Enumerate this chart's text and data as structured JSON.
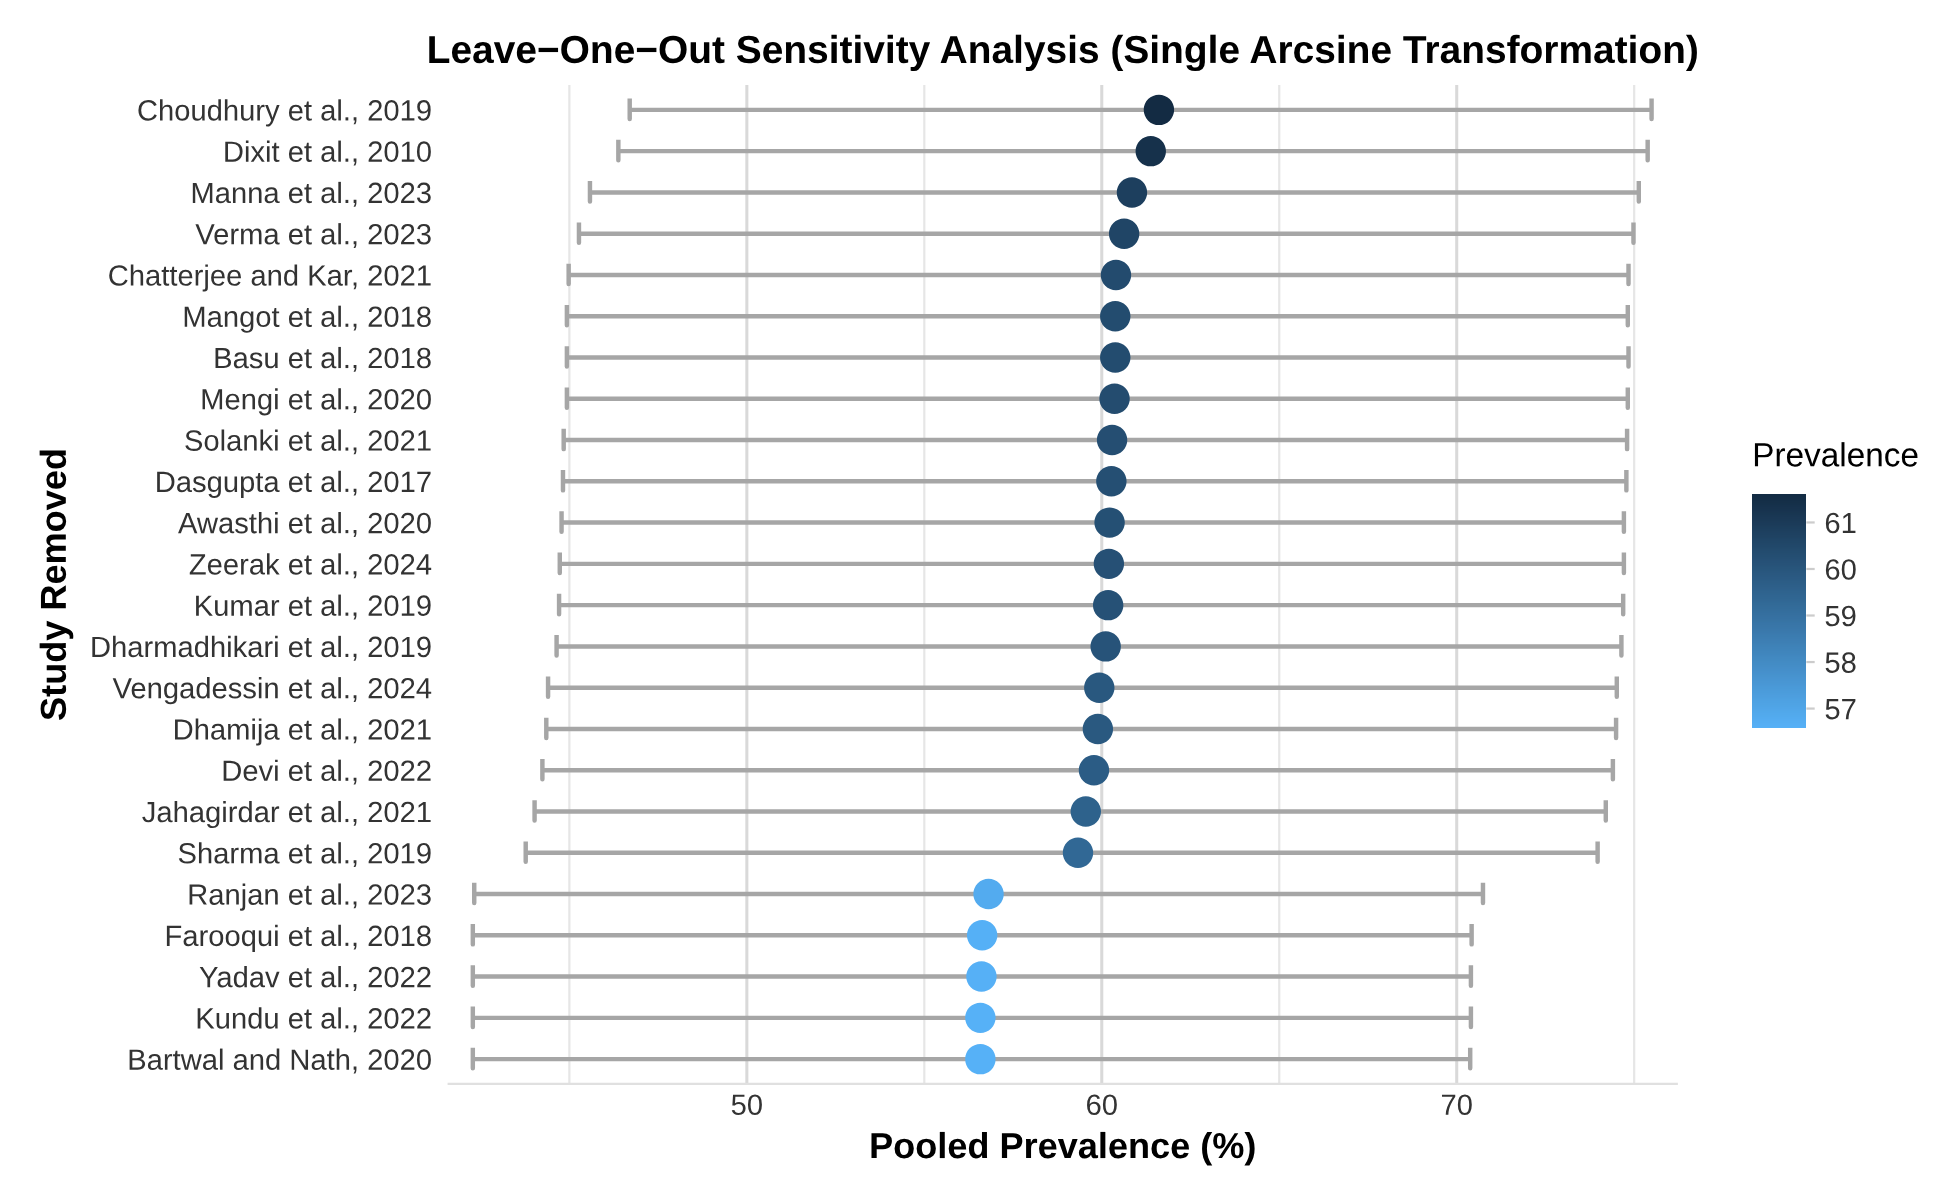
{
  "chart_data": {
    "type": "scatter",
    "orientation": "horizontal",
    "title": "Leave−One−Out Sensitivity Analysis (Single Arcsine Transformation)",
    "xlabel": "Pooled Prevalence (%)",
    "ylabel": "Study Removed",
    "clabel": "Prevalence",
    "categories": [
      "Choudhury et al., 2019",
      "Dixit et al., 2010",
      "Manna et al., 2023",
      "Verma et al., 2023",
      "Chatterjee and Kar, 2021",
      "Mangot et al., 2018",
      "Basu et al., 2018",
      "Mengi et al., 2020",
      "Solanki et al., 2021",
      "Dasgupta et al., 2017",
      "Awasthi et al., 2020",
      "Zeerak et al., 2024",
      "Kumar et al., 2019",
      "Dharmadhikari et al., 2019",
      "Vengadessin et al., 2024",
      "Dhamija et al., 2021",
      "Devi et al., 2022",
      "Jahagirdar et al., 2021",
      "Sharma et al., 2019",
      "Ranjan et al., 2023",
      "Farooqui et al., 2018",
      "Yadav et al., 2022",
      "Kundu et al., 2022",
      "Bartwal and Nath, 2020"
    ],
    "values": [
      61.61,
      61.38,
      60.85,
      60.63,
      60.4,
      60.38,
      60.38,
      60.36,
      60.29,
      60.27,
      60.22,
      60.2,
      60.18,
      60.11,
      59.93,
      59.89,
      59.78,
      59.55,
      59.33,
      56.81,
      56.63,
      56.61,
      56.58,
      56.58
    ],
    "cvalues": [
      61.61,
      61.38,
      60.85,
      60.63,
      60.4,
      60.38,
      60.38,
      60.36,
      60.29,
      60.27,
      60.22,
      60.2,
      60.18,
      60.11,
      59.93,
      59.89,
      59.78,
      59.55,
      59.33,
      56.81,
      56.63,
      56.61,
      56.58,
      56.58
    ],
    "errors": [
      [
        46.7,
        75.49
      ],
      [
        46.38,
        75.38
      ],
      [
        45.58,
        75.13
      ],
      [
        45.27,
        74.98
      ],
      [
        44.98,
        74.84
      ],
      [
        44.93,
        74.82
      ],
      [
        44.93,
        74.84
      ],
      [
        44.93,
        74.82
      ],
      [
        44.84,
        74.8
      ],
      [
        44.82,
        74.78
      ],
      [
        44.78,
        74.71
      ],
      [
        44.73,
        74.71
      ],
      [
        44.71,
        74.69
      ],
      [
        44.64,
        74.64
      ],
      [
        44.4,
        74.51
      ],
      [
        44.35,
        74.49
      ],
      [
        44.24,
        74.4
      ],
      [
        44.02,
        74.2
      ],
      [
        43.77,
        73.97
      ],
      [
        42.32,
        70.74
      ],
      [
        42.28,
        70.42
      ],
      [
        42.28,
        70.4
      ],
      [
        42.28,
        70.4
      ],
      [
        42.28,
        70.38
      ]
    ],
    "clim": [
      56.58,
      61.61
    ],
    "cticks": [
      57,
      58,
      59,
      60,
      61
    ],
    "xlim": [
      41.6,
      76.2
    ],
    "xticks": [
      {
        "value": 45,
        "label": null
      },
      50,
      {
        "value": 55,
        "label": null
      },
      60,
      {
        "value": 65,
        "label": null
      },
      70,
      {
        "value": 75,
        "label": null
      }
    ],
    "grid": "x",
    "marker": "circle"
  }
}
